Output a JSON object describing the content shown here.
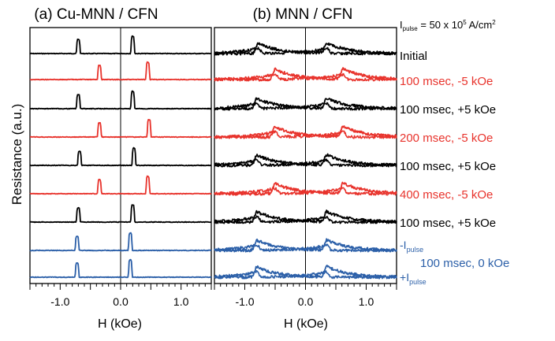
{
  "figure": {
    "ylabel": "Resistance (a.u.)",
    "pulse_label": {
      "prefix": "I",
      "sub": "pulse",
      "suffix": " = 50 x 10",
      "sup": "5",
      "unit": " A/cm",
      "unit_sup": "2"
    },
    "trace_labels": [
      {
        "text": "Initial",
        "color": "#000000"
      },
      {
        "text": "100 msec, -5 kOe",
        "color": "#e8332c"
      },
      {
        "text": "100 msec, +5 kOe",
        "color": "#000000"
      },
      {
        "text": "200 msec, -5 kOe",
        "color": "#e8332c"
      },
      {
        "text": "100 msec, +5 kOe",
        "color": "#000000"
      },
      {
        "text": "400 msec, -5 kOe",
        "color": "#e8332c"
      },
      {
        "text": "100 msec, +5 kOe",
        "color": "#000000"
      }
    ],
    "neg_pulse_label": {
      "sign": "-",
      "main": "I",
      "sub": "pulse",
      "color": "#2b5fa8"
    },
    "pos_pulse_label": {
      "sign": "+",
      "main": "I",
      "sub": "pulse",
      "color": "#2b5fa8"
    },
    "blue_group_label": {
      "text": "100 msec, 0 kOe",
      "color": "#2b5fa8"
    }
  },
  "chart_data": [
    {
      "type": "line",
      "title": "(a) Cu-MNN / CFN",
      "xlabel": "H (kOe)",
      "ylabel": "Resistance (a.u.)",
      "xlim": [
        -1.5,
        1.5
      ],
      "x_ticks": [
        "-1.0",
        "0.0",
        "1.0"
      ],
      "zero_line": true,
      "series": [
        {
          "label": "Initial",
          "color": "#000000",
          "peaks": [
            -0.7,
            0.2
          ]
        },
        {
          "label": "100 msec, -5 kOe",
          "color": "#e8332c",
          "peaks": [
            -0.35,
            0.45
          ]
        },
        {
          "label": "100 msec, +5 kOe",
          "color": "#000000",
          "peaks": [
            -0.7,
            0.2
          ]
        },
        {
          "label": "200 msec, -5 kOe",
          "color": "#e8332c",
          "peaks": [
            -0.35,
            0.47
          ]
        },
        {
          "label": "100 msec, +5 kOe",
          "color": "#000000",
          "peaks": [
            -0.68,
            0.22
          ]
        },
        {
          "label": "400 msec, -5 kOe",
          "color": "#e8332c",
          "peaks": [
            -0.35,
            0.45
          ]
        },
        {
          "label": "100 msec, +5 kOe",
          "color": "#000000",
          "peaks": [
            -0.7,
            0.2
          ]
        },
        {
          "label": "-Ipulse, 100 msec, 0 kOe",
          "color": "#2b5fa8",
          "peaks": [
            -0.72,
            0.16
          ]
        },
        {
          "label": "+Ipulse, 100 msec, 0 kOe",
          "color": "#2b5fa8",
          "peaks": [
            -0.72,
            0.16
          ]
        }
      ]
    },
    {
      "type": "line",
      "title": "(b) MNN / CFN",
      "xlabel": "H (kOe)",
      "ylabel": "",
      "xlim": [
        -1.5,
        1.5
      ],
      "x_ticks": [
        "-1.0",
        "0.0",
        "1.0"
      ],
      "zero_line": true,
      "series": [
        {
          "label": "Initial",
          "color": "#000000",
          "peaks": [
            -0.78,
            0.35
          ]
        },
        {
          "label": "100 msec, -5 kOe",
          "color": "#e8332c",
          "peaks": [
            -0.5,
            0.62
          ]
        },
        {
          "label": "100 msec, +5 kOe",
          "color": "#000000",
          "peaks": [
            -0.8,
            0.35
          ]
        },
        {
          "label": "200 msec, -5 kOe",
          "color": "#e8332c",
          "peaks": [
            -0.5,
            0.62
          ]
        },
        {
          "label": "100 msec, +5 kOe",
          "color": "#000000",
          "peaks": [
            -0.8,
            0.35
          ]
        },
        {
          "label": "400 msec, -5 kOe",
          "color": "#e8332c",
          "peaks": [
            -0.5,
            0.62
          ]
        },
        {
          "label": "100 msec, +5 kOe",
          "color": "#000000",
          "peaks": [
            -0.8,
            0.35
          ]
        },
        {
          "label": "-Ipulse, 100 msec, 0 kOe",
          "color": "#2b5fa8",
          "peaks": [
            -0.8,
            0.35
          ]
        },
        {
          "label": "+Ipulse, 100 msec, 0 kOe",
          "color": "#2b5fa8",
          "peaks": [
            -0.8,
            0.35
          ]
        }
      ]
    }
  ]
}
